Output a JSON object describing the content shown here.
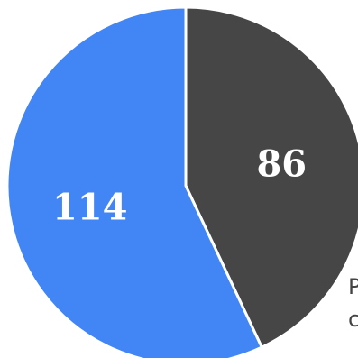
{
  "colors": {
    "background": "#ffffff",
    "slice_dark": "#464646",
    "slice_blue": "#4285f4",
    "separator": "#ffffff"
  },
  "chart_data": {
    "type": "pie",
    "title": "",
    "slices": [
      {
        "value": 86,
        "label": "86",
        "color": "#464646"
      },
      {
        "value": 114,
        "label": "114",
        "color": "#4285f4"
      }
    ],
    "start": "top",
    "direction": "clockwise",
    "legend": "none"
  },
  "overflow_text": {
    "line1": "P",
    "line2": "c"
  }
}
